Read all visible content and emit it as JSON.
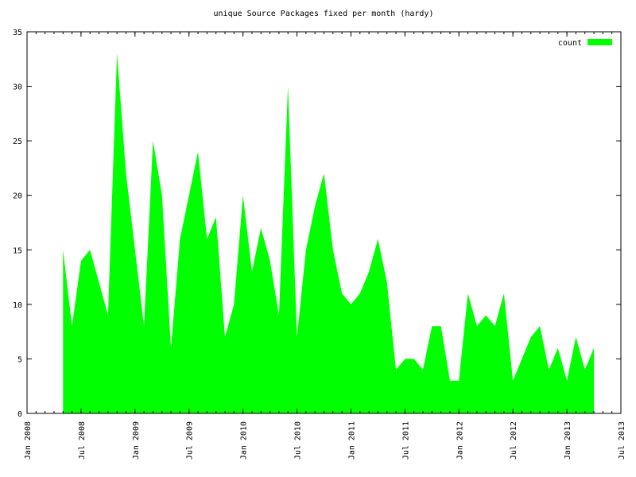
{
  "chart_data": {
    "type": "area",
    "title": "unique Source Packages fixed per month (hardy)",
    "x": [
      "2008-05",
      "2008-06",
      "2008-07",
      "2008-08",
      "2008-09",
      "2008-10",
      "2008-11",
      "2008-12",
      "2009-01",
      "2009-02",
      "2009-03",
      "2009-04",
      "2009-05",
      "2009-06",
      "2009-07",
      "2009-08",
      "2009-09",
      "2009-10",
      "2009-11",
      "2009-12",
      "2010-01",
      "2010-02",
      "2010-03",
      "2010-04",
      "2010-05",
      "2010-06",
      "2010-07",
      "2010-08",
      "2010-09",
      "2010-10",
      "2010-11",
      "2010-12",
      "2011-01",
      "2011-02",
      "2011-03",
      "2011-04",
      "2011-05",
      "2011-06",
      "2011-07",
      "2011-08",
      "2011-09",
      "2011-10",
      "2011-11",
      "2011-12",
      "2012-01",
      "2012-02",
      "2012-03",
      "2012-04",
      "2012-05",
      "2012-06",
      "2012-07",
      "2012-08",
      "2012-09",
      "2012-10",
      "2012-11",
      "2012-12",
      "2013-01",
      "2013-02",
      "2013-03",
      "2013-04"
    ],
    "series": [
      {
        "name": "count",
        "color": "#00ff00",
        "values": [
          15,
          8,
          14,
          15,
          12,
          9,
          33,
          22,
          15,
          8,
          25,
          20,
          6,
          16,
          20,
          24,
          16,
          18,
          7,
          10,
          20,
          13,
          17,
          14,
          9,
          30,
          7,
          15,
          19,
          22,
          15,
          11,
          10,
          11,
          13,
          16,
          12,
          4,
          5,
          5,
          4,
          8,
          8,
          3,
          3,
          11,
          8,
          9,
          8,
          11,
          3,
          5,
          7,
          8,
          4,
          6,
          3,
          7,
          4,
          6
        ]
      }
    ],
    "xlim": [
      "2008-01",
      "2013-07"
    ],
    "xticks": [
      {
        "value": "2008-01",
        "label": "Jan 2008"
      },
      {
        "value": "2008-07",
        "label": "Jul 2008"
      },
      {
        "value": "2009-01",
        "label": "Jan 2009"
      },
      {
        "value": "2009-07",
        "label": "Jul 2009"
      },
      {
        "value": "2010-01",
        "label": "Jan 2010"
      },
      {
        "value": "2010-07",
        "label": "Jul 2010"
      },
      {
        "value": "2011-01",
        "label": "Jan 2011"
      },
      {
        "value": "2011-07",
        "label": "Jul 2011"
      },
      {
        "value": "2012-01",
        "label": "Jan 2012"
      },
      {
        "value": "2012-07",
        "label": "Jul 2012"
      },
      {
        "value": "2013-01",
        "label": "Jan 2013"
      },
      {
        "value": "2013-07",
        "label": "Jul 2013"
      }
    ],
    "ylim": [
      0,
      35
    ],
    "yticks": [
      0,
      5,
      10,
      15,
      20,
      25,
      30,
      35
    ],
    "legend": "upper right"
  }
}
